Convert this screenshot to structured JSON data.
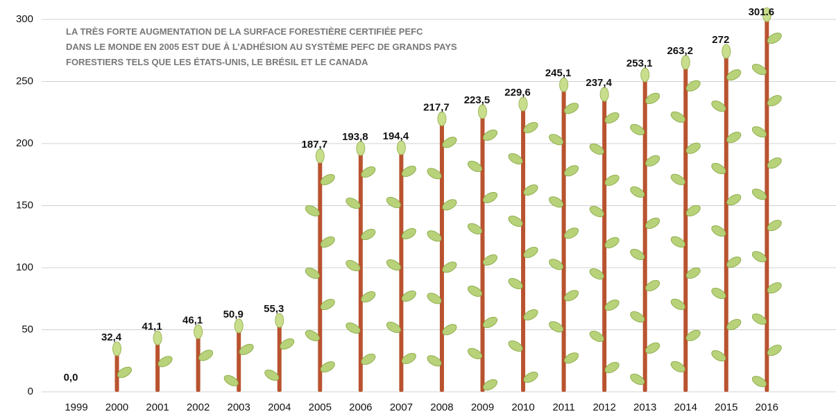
{
  "chart_data": {
    "type": "bar",
    "annotation": [
      "LA TRÈS FORTE AUGMENTATION DE LA SURFACE FORESTIÈRE CERTIFIÉE PEFC",
      "DANS LE MONDE EN 2005 EST DUE À L’ADHÉSION AU SYSTÈME PEFC DE GRANDS PAYS",
      "FORESTIERS TELS QUE LES ÉTATS-UNIS, LE BRÉSIL ET LE CANADA"
    ],
    "categories": [
      "1999",
      "2000",
      "2001",
      "2002",
      "2003",
      "2004",
      "2005",
      "2006",
      "2007",
      "2008",
      "2009",
      "2010",
      "2011",
      "2012",
      "2013",
      "2014",
      "2015",
      "2016"
    ],
    "values": [
      0.0,
      32.4,
      41.1,
      46.1,
      50.9,
      55.3,
      187.7,
      193.8,
      194.4,
      217.7,
      223.5,
      229.6,
      245.1,
      237.4,
      253.1,
      263.2,
      272,
      301.6
    ],
    "value_labels": [
      "0,0",
      "32,4",
      "41,1",
      "46,1",
      "50,9",
      "55,3",
      "187,7",
      "193,8",
      "194,4",
      "217,7",
      "223,5",
      "229,6",
      "245,1",
      "237,4",
      "253,1",
      "263,2",
      "272",
      "301.6"
    ],
    "color": "#b9532f",
    "ylim": [
      0,
      300
    ],
    "yticks": [
      0,
      50,
      100,
      150,
      200,
      250,
      300
    ],
    "grid": true
  }
}
